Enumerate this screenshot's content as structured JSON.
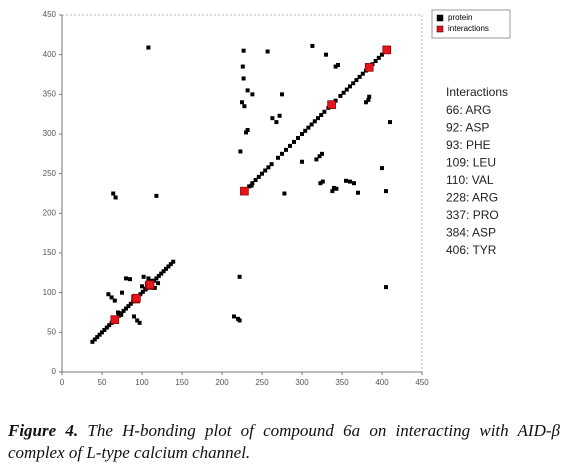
{
  "chart_data": {
    "type": "scatter",
    "xlim": [
      0,
      450
    ],
    "ylim": [
      0,
      450
    ],
    "xticks": [
      0,
      50,
      100,
      150,
      200,
      250,
      300,
      350,
      400,
      450
    ],
    "yticks": [
      0,
      50,
      100,
      150,
      200,
      250,
      300,
      350,
      400,
      450
    ],
    "legend_position": "upper right",
    "series": [
      {
        "name": "protein",
        "color": "#000000",
        "x": [
          38,
          41,
          44,
          47,
          50,
          53,
          56,
          59,
          62,
          68,
          71,
          74,
          77,
          80,
          83,
          86,
          89,
          95,
          98,
          101,
          104,
          107,
          112,
          115,
          118,
          121,
          124,
          127,
          130,
          133,
          136,
          139,
          234,
          238,
          242,
          246,
          250,
          254,
          258,
          262,
          270,
          275,
          280,
          285,
          290,
          295,
          300,
          304,
          308,
          312,
          316,
          320,
          324,
          328,
          333,
          342,
          348,
          352,
          356,
          360,
          364,
          368,
          372,
          376,
          380,
          388,
          392,
          396,
          400,
          404,
          408,
          108,
          227,
          257,
          313,
          330,
          226,
          227,
          225,
          228,
          232,
          238,
          275,
          263,
          268,
          272,
          380,
          383,
          384,
          342,
          345,
          232,
          230,
          300,
          318,
          322,
          325,
          223,
          237,
          278,
          323,
          326,
          338,
          340,
          343,
          355,
          360,
          365,
          370,
          400,
          405,
          410,
          405,
          64,
          67,
          118,
          222,
          215,
          220,
          222,
          58,
          62,
          66,
          80,
          85,
          75,
          70,
          74,
          90,
          94,
          97,
          100,
          105,
          102,
          108,
          112,
          116,
          120
        ],
        "values": [
          38,
          41,
          44,
          47,
          50,
          53,
          56,
          59,
          62,
          68,
          71,
          74,
          77,
          80,
          83,
          86,
          89,
          95,
          98,
          101,
          104,
          107,
          112,
          115,
          118,
          121,
          124,
          127,
          130,
          133,
          136,
          139,
          234,
          238,
          242,
          246,
          250,
          254,
          258,
          262,
          270,
          275,
          280,
          285,
          290,
          295,
          300,
          304,
          308,
          312,
          316,
          320,
          324,
          328,
          333,
          342,
          348,
          352,
          356,
          360,
          364,
          368,
          372,
          376,
          380,
          388,
          392,
          396,
          400,
          404,
          408,
          409,
          405,
          404,
          411,
          400,
          385,
          370,
          340,
          335,
          355,
          350,
          350,
          320,
          315,
          323,
          340,
          343,
          347,
          385,
          387,
          305,
          302,
          265,
          268,
          272,
          275,
          278,
          235,
          225,
          238,
          240,
          228,
          232,
          231,
          241,
          240,
          238,
          226,
          257,
          228,
          315,
          107,
          225,
          220,
          222,
          120,
          70,
          67,
          65,
          98,
          94,
          90,
          118,
          117,
          100,
          75,
          72,
          70,
          65,
          62,
          108,
          105,
          120,
          118,
          115,
          106,
          112
        ]
      },
      {
        "name": "interactions",
        "color": "#e8141b",
        "x": [
          66,
          92,
          93,
          109,
          110,
          228,
          337,
          384,
          406
        ],
        "values": [
          66,
          92,
          93,
          109,
          110,
          228,
          337,
          384,
          406
        ]
      }
    ],
    "annotation_title": "Interactions",
    "annotations": [
      "66: ARG",
      "92: ASP",
      "93: PHE",
      "109: LEU",
      "110: VAL",
      "228: ARG",
      "337: PRO",
      "384: ASP",
      "406: TYR"
    ],
    "caption_label": "Figure 4.",
    "caption_text": "The H-bonding plot of compound 6a on interacting with AID-β complex of L-type calcium channel."
  }
}
